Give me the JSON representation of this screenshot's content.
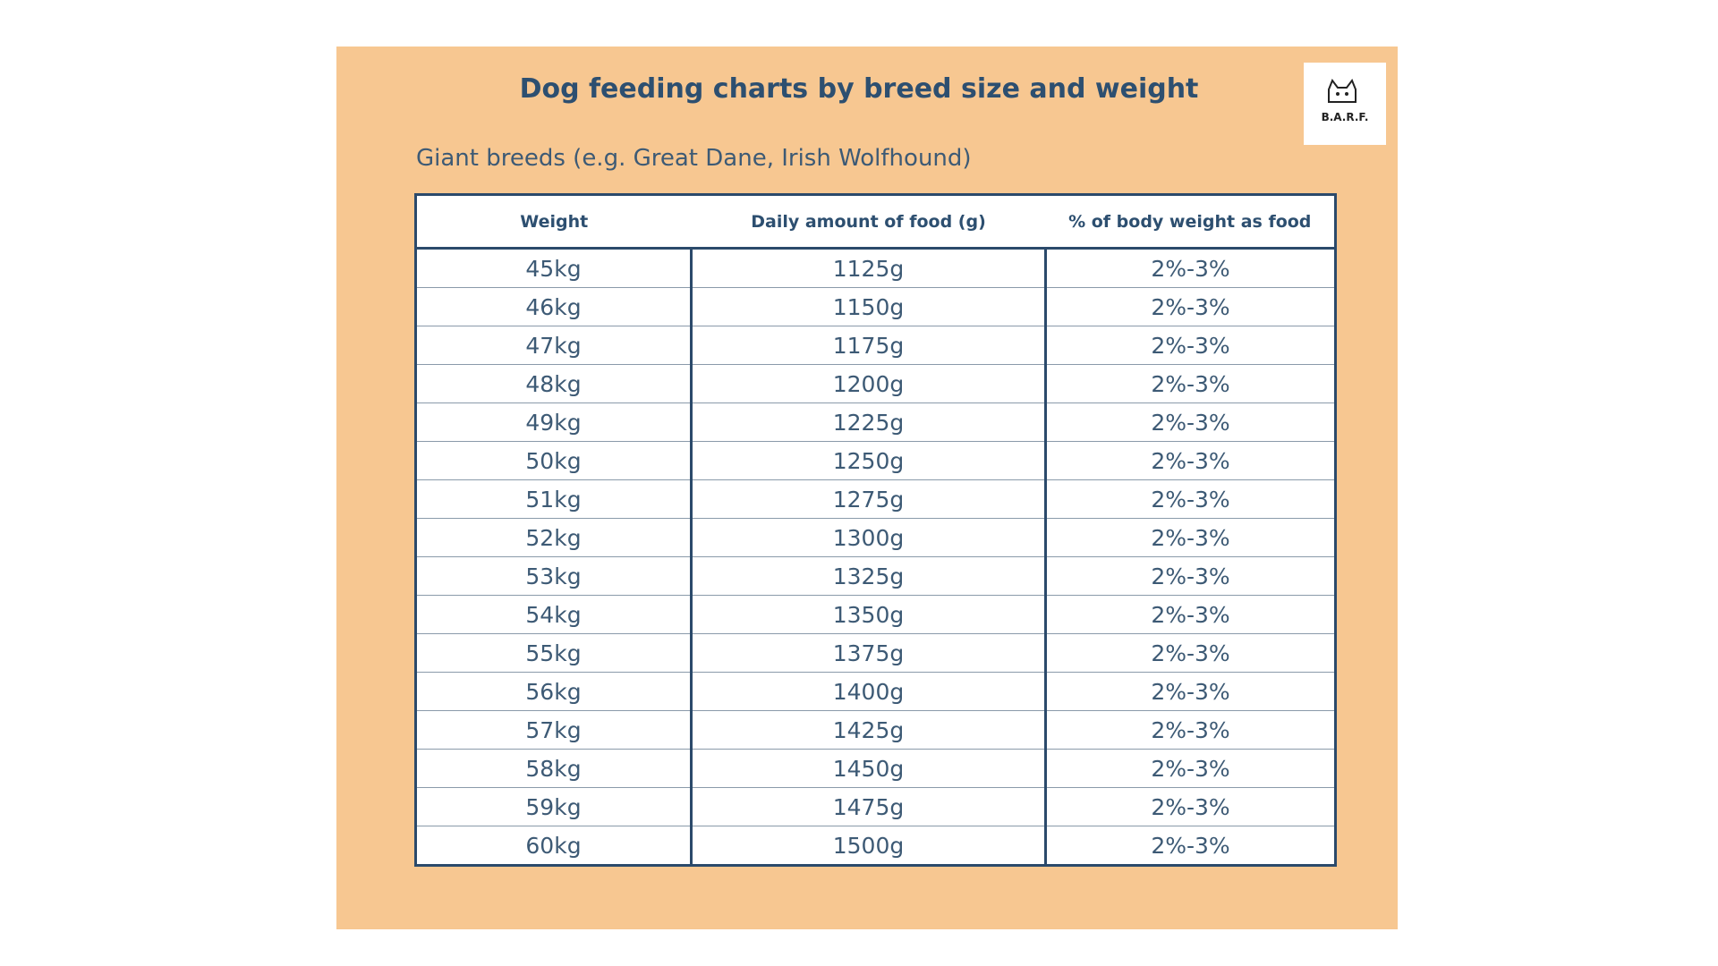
{
  "header": {
    "title": "Dog feeding charts by breed size and weight",
    "logo": "B.A.R.F."
  },
  "subtitle": "Giant breeds (e.g. Great Dane, Irish Wolfhound)",
  "table": {
    "headers": [
      "Weight",
      "Daily amount of food (g)",
      "% of body weight as food"
    ],
    "rows": [
      [
        "45kg",
        "1125g",
        "2%-3%"
      ],
      [
        "46kg",
        "1150g",
        "2%-3%"
      ],
      [
        "47kg",
        "1175g",
        "2%-3%"
      ],
      [
        "48kg",
        "1200g",
        "2%-3%"
      ],
      [
        "49kg",
        "1225g",
        "2%-3%"
      ],
      [
        "50kg",
        "1250g",
        "2%-3%"
      ],
      [
        "51kg",
        "1275g",
        "2%-3%"
      ],
      [
        "52kg",
        "1300g",
        "2%-3%"
      ],
      [
        "53kg",
        "1325g",
        "2%-3%"
      ],
      [
        "54kg",
        "1350g",
        "2%-3%"
      ],
      [
        "55kg",
        "1375g",
        "2%-3%"
      ],
      [
        "56kg",
        "1400g",
        "2%-3%"
      ],
      [
        "57kg",
        "1425g",
        "2%-3%"
      ],
      [
        "58kg",
        "1450g",
        "2%-3%"
      ],
      [
        "59kg",
        "1475g",
        "2%-3%"
      ],
      [
        "60kg",
        "1500g",
        "2%-3%"
      ]
    ]
  }
}
